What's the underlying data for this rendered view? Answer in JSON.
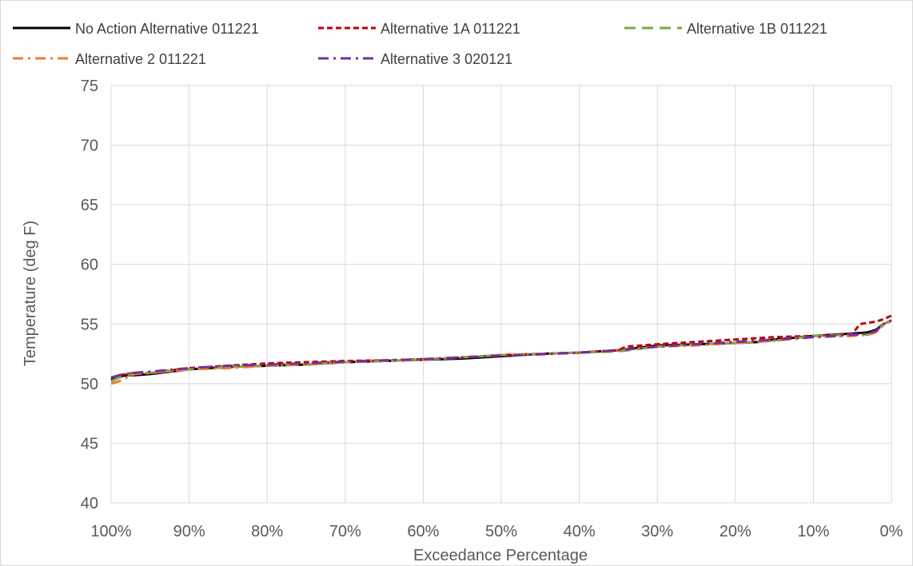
{
  "chart_data": {
    "type": "line",
    "title": "",
    "xlabel": "Exceedance Percentage",
    "ylabel": "Temperature (deg F)",
    "x_reversed": true,
    "xlim": [
      100,
      0
    ],
    "ylim": [
      40,
      75
    ],
    "grid": true,
    "legend_position": "top",
    "x_ticks": [
      "100%",
      "90%",
      "80%",
      "70%",
      "60%",
      "50%",
      "40%",
      "30%",
      "20%",
      "10%",
      "0%"
    ],
    "y_ticks": [
      "40",
      "45",
      "50",
      "55",
      "60",
      "65",
      "70",
      "75"
    ],
    "series": [
      {
        "name": "No Action Alternative  011221",
        "color": "#000000",
        "dash": "solid",
        "x": [
          100,
          99,
          98,
          97,
          95,
          90,
          85,
          80,
          75,
          70,
          65,
          60,
          55,
          50,
          45,
          40,
          35,
          30,
          25,
          20,
          17,
          15,
          10,
          5,
          3,
          2,
          1,
          0
        ],
        "y": [
          50.3,
          50.6,
          50.7,
          50.7,
          50.8,
          51.2,
          51.4,
          51.5,
          51.6,
          51.8,
          51.9,
          52.0,
          52.1,
          52.3,
          52.5,
          52.6,
          52.8,
          53.2,
          53.3,
          53.4,
          53.5,
          53.7,
          54.0,
          54.2,
          54.3,
          54.5,
          55.0,
          55.3
        ]
      },
      {
        "name": "Alternative 1A 011221",
        "color": "#c00000",
        "dash": "dash",
        "x": [
          100,
          99,
          98,
          97,
          95,
          90,
          85,
          80,
          75,
          70,
          65,
          60,
          55,
          50,
          45,
          40,
          35,
          34,
          30,
          25,
          20,
          15,
          10,
          5,
          4,
          3,
          2,
          1,
          0
        ],
        "y": [
          50.5,
          50.7,
          50.8,
          50.9,
          50.9,
          51.3,
          51.5,
          51.7,
          51.8,
          51.9,
          51.95,
          52.05,
          52.2,
          52.4,
          52.5,
          52.6,
          52.8,
          53.1,
          53.3,
          53.5,
          53.7,
          53.9,
          54.0,
          54.2,
          55.0,
          55.1,
          55.2,
          55.4,
          55.7
        ]
      },
      {
        "name": "Alternative 1B 011221",
        "color": "#70ad47",
        "dash": "longdash",
        "x": [
          100,
          99,
          98,
          97,
          95,
          90,
          85,
          80,
          75,
          70,
          65,
          60,
          55,
          50,
          45,
          40,
          35,
          30,
          25,
          20,
          15,
          10,
          5,
          3,
          2,
          1,
          0
        ],
        "y": [
          50.2,
          50.5,
          50.7,
          50.8,
          50.9,
          51.2,
          51.4,
          51.5,
          51.6,
          51.8,
          51.9,
          52.0,
          52.2,
          52.4,
          52.5,
          52.6,
          52.7,
          53.1,
          53.3,
          53.4,
          53.6,
          54.0,
          54.1,
          54.1,
          54.3,
          55.0,
          55.3
        ]
      },
      {
        "name": "Alternative 2 011221",
        "color": "#ed7d31",
        "dash": "dashdot",
        "x": [
          100,
          99,
          98,
          97,
          95,
          90,
          85,
          80,
          75,
          70,
          65,
          60,
          55,
          50,
          45,
          40,
          35,
          30,
          25,
          20,
          15,
          10,
          5,
          3,
          2,
          1,
          0
        ],
        "y": [
          50.0,
          50.2,
          50.5,
          50.8,
          50.9,
          51.2,
          51.3,
          51.5,
          51.6,
          51.8,
          51.9,
          52.0,
          52.2,
          52.4,
          52.5,
          52.6,
          52.8,
          53.1,
          53.2,
          53.4,
          53.6,
          53.9,
          54.0,
          54.1,
          54.3,
          54.9,
          55.3
        ]
      },
      {
        "name": "Alternative 3 020121",
        "color": "#7030a0",
        "dash": "dashdot",
        "x": [
          100,
          99,
          98,
          97,
          95,
          90,
          85,
          80,
          75,
          70,
          65,
          60,
          55,
          50,
          45,
          40,
          35,
          30,
          25,
          20,
          15,
          10,
          5,
          3,
          2,
          1,
          0
        ],
        "y": [
          50.5,
          50.7,
          50.8,
          50.9,
          51.0,
          51.3,
          51.5,
          51.6,
          51.7,
          51.85,
          51.95,
          52.05,
          52.2,
          52.35,
          52.45,
          52.6,
          52.8,
          53.1,
          53.3,
          53.5,
          53.7,
          53.9,
          54.1,
          54.2,
          54.4,
          55.0,
          55.3
        ]
      }
    ]
  }
}
